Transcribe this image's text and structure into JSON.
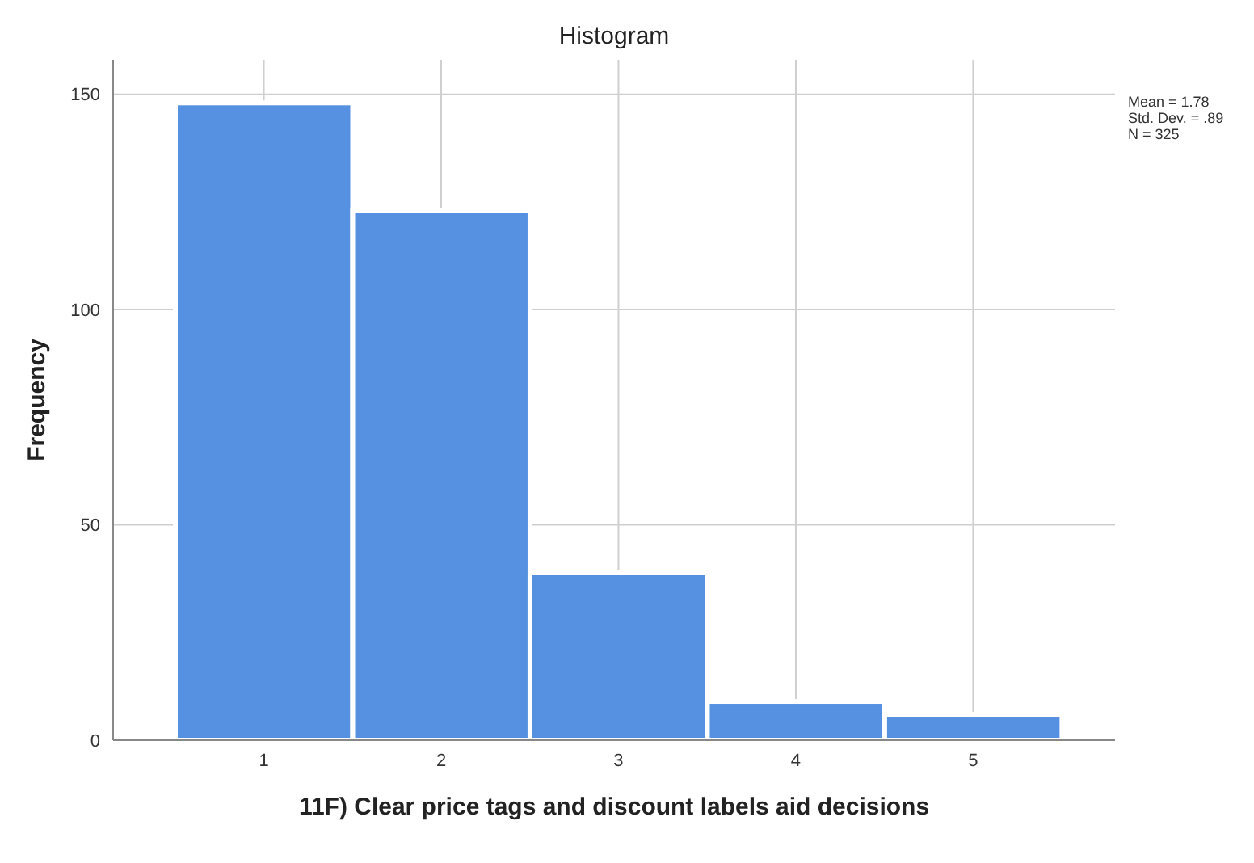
{
  "chart_data": {
    "type": "histogram",
    "title": "Histogram",
    "xlabel": "11F) Clear price tags and discount labels aid decisions",
    "ylabel": "Frequency",
    "bins": [
      0.5,
      1.5,
      2.5,
      3.5,
      4.5,
      5.5
    ],
    "values": [
      148,
      123,
      39,
      9,
      6
    ],
    "color": "#5591e0",
    "xlim": [
      0.15,
      5.8
    ],
    "xticks": [
      1,
      2,
      3,
      4,
      5
    ],
    "ylim": [
      0,
      158
    ],
    "yticks": [
      0,
      50,
      100,
      150
    ],
    "grid": true,
    "annotations": [
      "Mean = 1.78",
      "Std. Dev. = .89",
      "N = 325"
    ]
  }
}
